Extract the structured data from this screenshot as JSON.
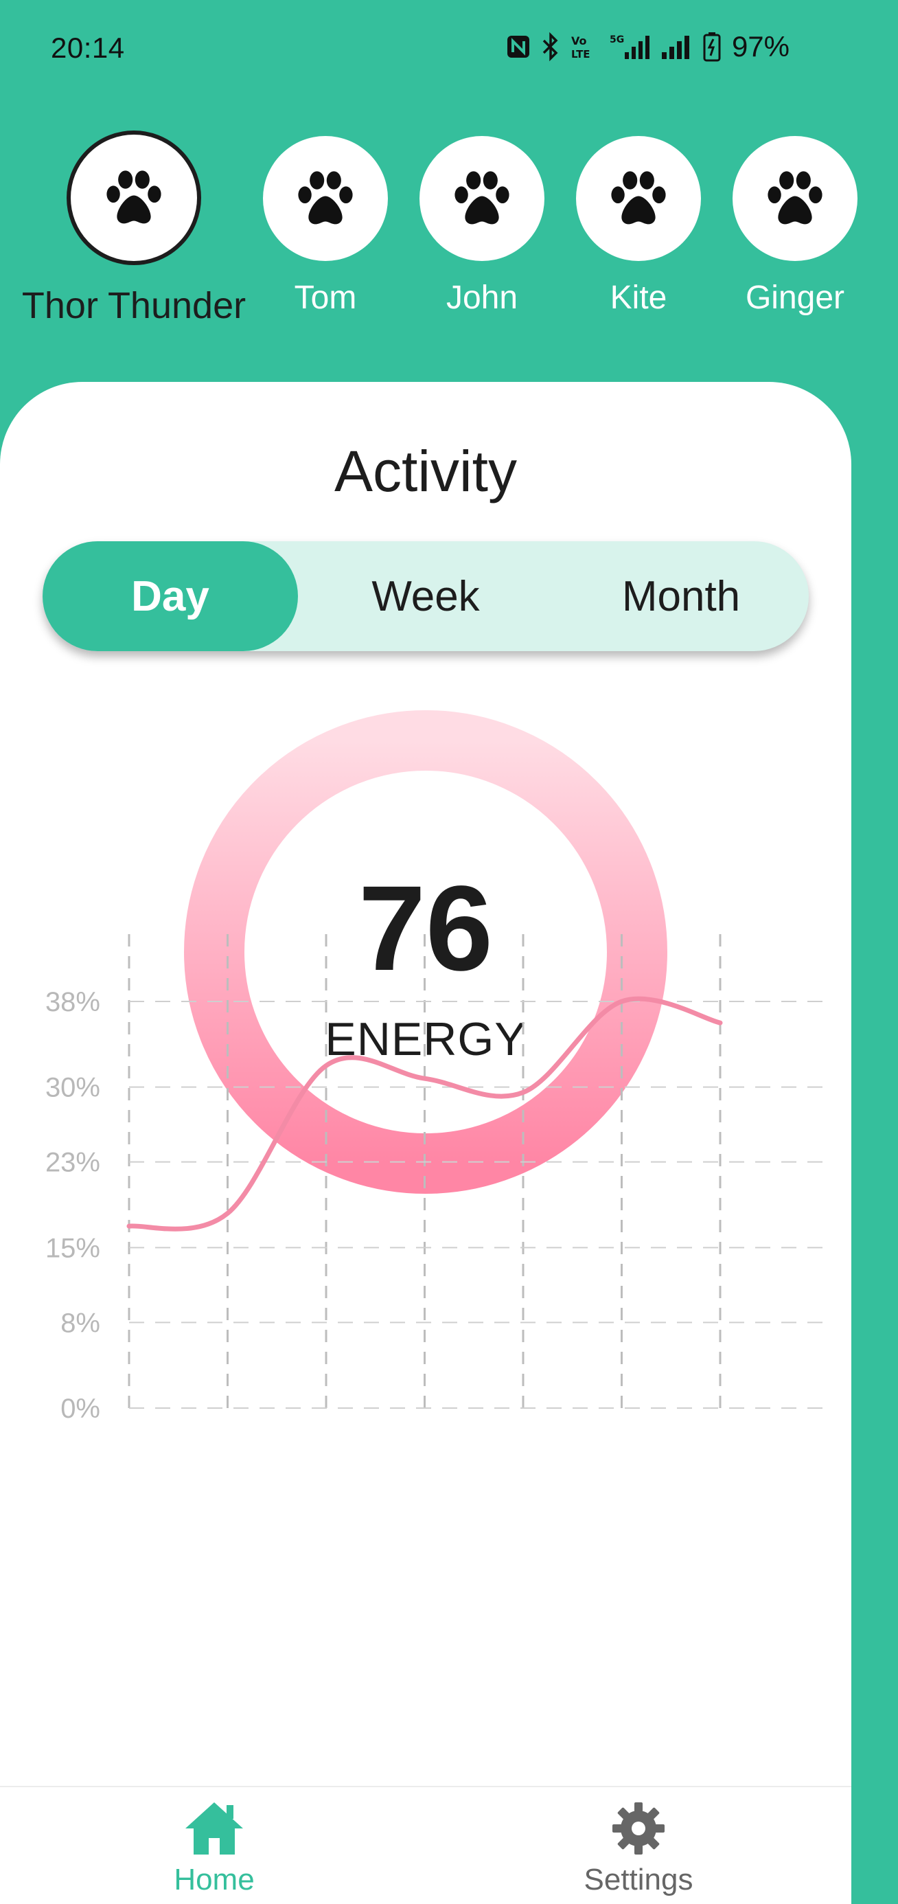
{
  "status_bar": {
    "time": "20:14",
    "battery": "97%",
    "icons": [
      "nfc-icon",
      "bluetooth-icon",
      "volte-icon",
      "5g-signal-icon",
      "signal-icon",
      "battery-icon"
    ]
  },
  "pets": [
    {
      "name": "Thor Thunder",
      "selected": true,
      "icon": "paw-icon"
    },
    {
      "name": "Tom",
      "selected": false,
      "icon": "paw-icon"
    },
    {
      "name": "John",
      "selected": false,
      "icon": "paw-icon"
    },
    {
      "name": "Kite",
      "selected": false,
      "icon": "paw-icon"
    },
    {
      "name": "Ginger",
      "selected": false,
      "icon": "paw-icon"
    }
  ],
  "activity": {
    "title": "Activity",
    "tabs": [
      {
        "label": "Day",
        "active": true
      },
      {
        "label": "Week",
        "active": false
      },
      {
        "label": "Month",
        "active": false
      }
    ],
    "energy": {
      "value": "76",
      "label": "ENERGY"
    }
  },
  "chart_data": {
    "type": "line",
    "title": "",
    "xlabel": "",
    "ylabel": "",
    "y_tick_labels": [
      "38%",
      "30%",
      "23%",
      "15%",
      "8%",
      "0%"
    ],
    "y_ticks": [
      38,
      30,
      23,
      15,
      8,
      0
    ],
    "ylim": [
      0,
      38
    ],
    "x": [
      1,
      2,
      3,
      4,
      5,
      6,
      7
    ],
    "series": [
      {
        "values": [
          17,
          18.2,
          32,
          30.8,
          29.5,
          38,
          36
        ]
      }
    ],
    "grid": true,
    "color": "#F38BA6"
  },
  "bottom_nav": {
    "items": [
      {
        "label": "Home",
        "icon": "home-icon",
        "active": true
      },
      {
        "label": "Settings",
        "icon": "settings-icon",
        "active": false
      }
    ]
  },
  "colors": {
    "primary": "#35BF9C",
    "segment_bg": "#D8F3EC",
    "ring_top": "#FFDCE4",
    "ring_bottom": "#FF86A5",
    "line": "#F38BA6"
  }
}
